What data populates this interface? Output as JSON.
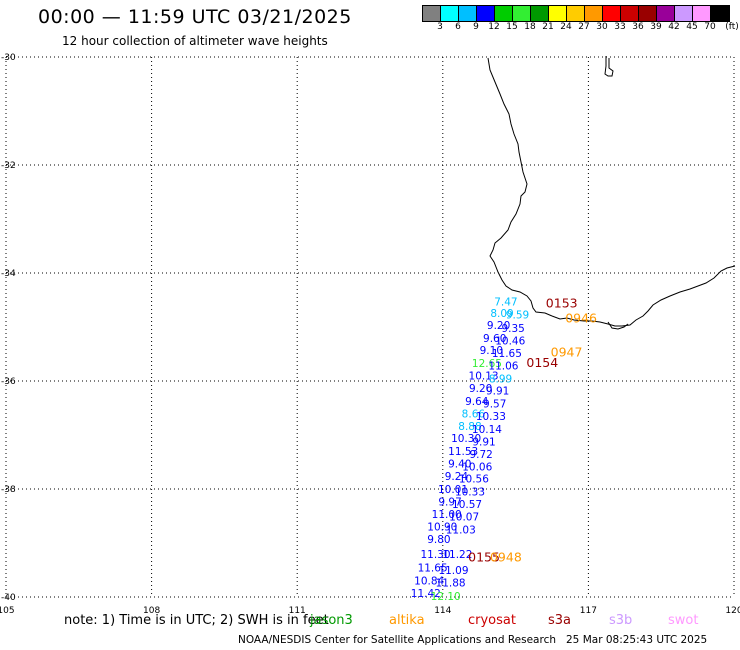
{
  "header": {
    "title": "00:00 — 11:59 UTC 03/21/2025",
    "subtitle": "12 hour collection of altimeter wave heights"
  },
  "colorbar": {
    "colors": [
      "#808080",
      "#00ffff",
      "#00bfff",
      "#0000ff",
      "#00cc00",
      "#33ee33",
      "#009900",
      "#ffff00",
      "#ffcc00",
      "#ff9900",
      "#ff0000",
      "#cc0000",
      "#990000",
      "#990099",
      "#cc99ff",
      "#ff99ff",
      "#000000"
    ],
    "labels": [
      "3",
      "6",
      "9",
      "12",
      "15",
      "18",
      "21",
      "24",
      "27",
      "30",
      "33",
      "36",
      "39",
      "42",
      "45",
      "70",
      "(ft)"
    ]
  },
  "map": {
    "lon_range": [
      105,
      120
    ],
    "lat_range": [
      -40,
      -30
    ],
    "lon_ticks": [
      "105",
      "108",
      "111",
      "114",
      "117",
      "120"
    ],
    "lat_ticks": [
      "-30",
      "-32",
      "-34",
      "-36",
      "-38",
      "-40"
    ],
    "grid": "dotted"
  },
  "pass_labels": [
    {
      "text": "0153",
      "lon": 116.45,
      "lat": -34.55,
      "color": "#990000"
    },
    {
      "text": "0946",
      "lon": 116.85,
      "lat": -34.82,
      "color": "#ff9900"
    },
    {
      "text": "0947",
      "lon": 116.55,
      "lat": -35.45,
      "color": "#ff9900"
    },
    {
      "text": "0154",
      "lon": 116.05,
      "lat": -35.65,
      "color": "#990000"
    },
    {
      "text": "0155",
      "lon": 114.85,
      "lat": -39.25,
      "color": "#990000"
    },
    {
      "text": "0948",
      "lon": 115.3,
      "lat": -39.25,
      "color": "#ff9900"
    }
  ],
  "wave_labels": [
    {
      "text": "7.47",
      "lon": 115.3,
      "lat": -34.53,
      "color": "#00bfff"
    },
    {
      "text": "8.09",
      "lon": 115.22,
      "lat": -34.74,
      "color": "#00bfff"
    },
    {
      "text": "9.59",
      "lon": 115.54,
      "lat": -34.77,
      "color": "#00bfff"
    },
    {
      "text": "9.20",
      "lon": 115.15,
      "lat": -34.96,
      "color": "#0000ff"
    },
    {
      "text": "9.35",
      "lon": 115.45,
      "lat": -35.02,
      "color": "#0000ff"
    },
    {
      "text": "9.60",
      "lon": 115.07,
      "lat": -35.2,
      "color": "#0000ff"
    },
    {
      "text": "10.46",
      "lon": 115.39,
      "lat": -35.25,
      "color": "#0000ff"
    },
    {
      "text": "9.10",
      "lon": 115.0,
      "lat": -35.43,
      "color": "#0000ff"
    },
    {
      "text": "11.65",
      "lon": 115.32,
      "lat": -35.48,
      "color": "#0000ff"
    },
    {
      "text": "12.65",
      "lon": 114.91,
      "lat": -35.67,
      "color": "#33ee33"
    },
    {
      "text": "11.06",
      "lon": 115.25,
      "lat": -35.71,
      "color": "#0000ff"
    },
    {
      "text": "10.13",
      "lon": 114.84,
      "lat": -35.9,
      "color": "#0000ff"
    },
    {
      "text": "8.99",
      "lon": 115.19,
      "lat": -35.95,
      "color": "#00bfff"
    },
    {
      "text": "9.20",
      "lon": 114.78,
      "lat": -36.13,
      "color": "#0000ff"
    },
    {
      "text": "9.91",
      "lon": 115.13,
      "lat": -36.18,
      "color": "#0000ff"
    },
    {
      "text": "9.64",
      "lon": 114.7,
      "lat": -36.37,
      "color": "#0000ff"
    },
    {
      "text": "9.57",
      "lon": 115.07,
      "lat": -36.42,
      "color": "#0000ff"
    },
    {
      "text": "8.66",
      "lon": 114.63,
      "lat": -36.6,
      "color": "#00bfff"
    },
    {
      "text": "10.33",
      "lon": 114.99,
      "lat": -36.65,
      "color": "#0000ff"
    },
    {
      "text": "8.88",
      "lon": 114.56,
      "lat": -36.83,
      "color": "#00bfff"
    },
    {
      "text": "10.14",
      "lon": 114.91,
      "lat": -36.89,
      "color": "#0000ff"
    },
    {
      "text": "10.30",
      "lon": 114.48,
      "lat": -37.06,
      "color": "#0000ff"
    },
    {
      "text": "9.91",
      "lon": 114.85,
      "lat": -37.12,
      "color": "#0000ff"
    },
    {
      "text": "11.53",
      "lon": 114.42,
      "lat": -37.3,
      "color": "#0000ff"
    },
    {
      "text": "9.72",
      "lon": 114.79,
      "lat": -37.35,
      "color": "#0000ff"
    },
    {
      "text": "9.40",
      "lon": 114.35,
      "lat": -37.53,
      "color": "#0000ff"
    },
    {
      "text": "10.06",
      "lon": 114.71,
      "lat": -37.58,
      "color": "#0000ff"
    },
    {
      "text": "9.24",
      "lon": 114.28,
      "lat": -37.76,
      "color": "#0000ff"
    },
    {
      "text": "10.56",
      "lon": 114.64,
      "lat": -37.81,
      "color": "#0000ff"
    },
    {
      "text": "10.01",
      "lon": 114.21,
      "lat": -38.0,
      "color": "#0000ff"
    },
    {
      "text": "10.33",
      "lon": 114.56,
      "lat": -38.05,
      "color": "#0000ff"
    },
    {
      "text": "9.97",
      "lon": 114.15,
      "lat": -38.23,
      "color": "#0000ff"
    },
    {
      "text": "10.57",
      "lon": 114.5,
      "lat": -38.28,
      "color": "#0000ff"
    },
    {
      "text": "11.00",
      "lon": 114.08,
      "lat": -38.46,
      "color": "#0000ff"
    },
    {
      "text": "10.07",
      "lon": 114.44,
      "lat": -38.51,
      "color": "#0000ff"
    },
    {
      "text": "10.90",
      "lon": 113.99,
      "lat": -38.69,
      "color": "#0000ff"
    },
    {
      "text": "11.03",
      "lon": 114.37,
      "lat": -38.75,
      "color": "#0000ff"
    },
    {
      "text": "9.80",
      "lon": 113.92,
      "lat": -38.93,
      "color": "#0000ff"
    },
    {
      "text": "11.30",
      "lon": 113.85,
      "lat": -39.2,
      "color": "#0000ff"
    },
    {
      "text": "11.22",
      "lon": 114.3,
      "lat": -39.2,
      "color": "#0000ff"
    },
    {
      "text": "11.65",
      "lon": 113.79,
      "lat": -39.45,
      "color": "#0000ff"
    },
    {
      "text": "11.09",
      "lon": 114.22,
      "lat": -39.5,
      "color": "#0000ff"
    },
    {
      "text": "10.84",
      "lon": 113.72,
      "lat": -39.69,
      "color": "#0000ff"
    },
    {
      "text": "11.88",
      "lon": 114.16,
      "lat": -39.73,
      "color": "#0000ff"
    },
    {
      "text": "11.42",
      "lon": 113.65,
      "lat": -39.93,
      "color": "#0000ff"
    },
    {
      "text": "12.10",
      "lon": 114.06,
      "lat": -39.98,
      "color": "#33ee33"
    }
  ],
  "footer": {
    "note": "note:  1) Time is in UTC;  2) SWH is in feet",
    "satellites": [
      {
        "name": "jason3",
        "color": "#009900"
      },
      {
        "name": "altika",
        "color": "#ff9900"
      },
      {
        "name": "cryosat",
        "color": "#cc0000"
      },
      {
        "name": "s3a",
        "color": "#990000"
      },
      {
        "name": "s3b",
        "color": "#cc99ff"
      },
      {
        "name": "swot",
        "color": "#ff99ff"
      }
    ],
    "credit": "NOAA/NESDIS Center for Satellite Applications and Research",
    "timestamp": "25 Mar 08:25:43 UTC 2025"
  }
}
